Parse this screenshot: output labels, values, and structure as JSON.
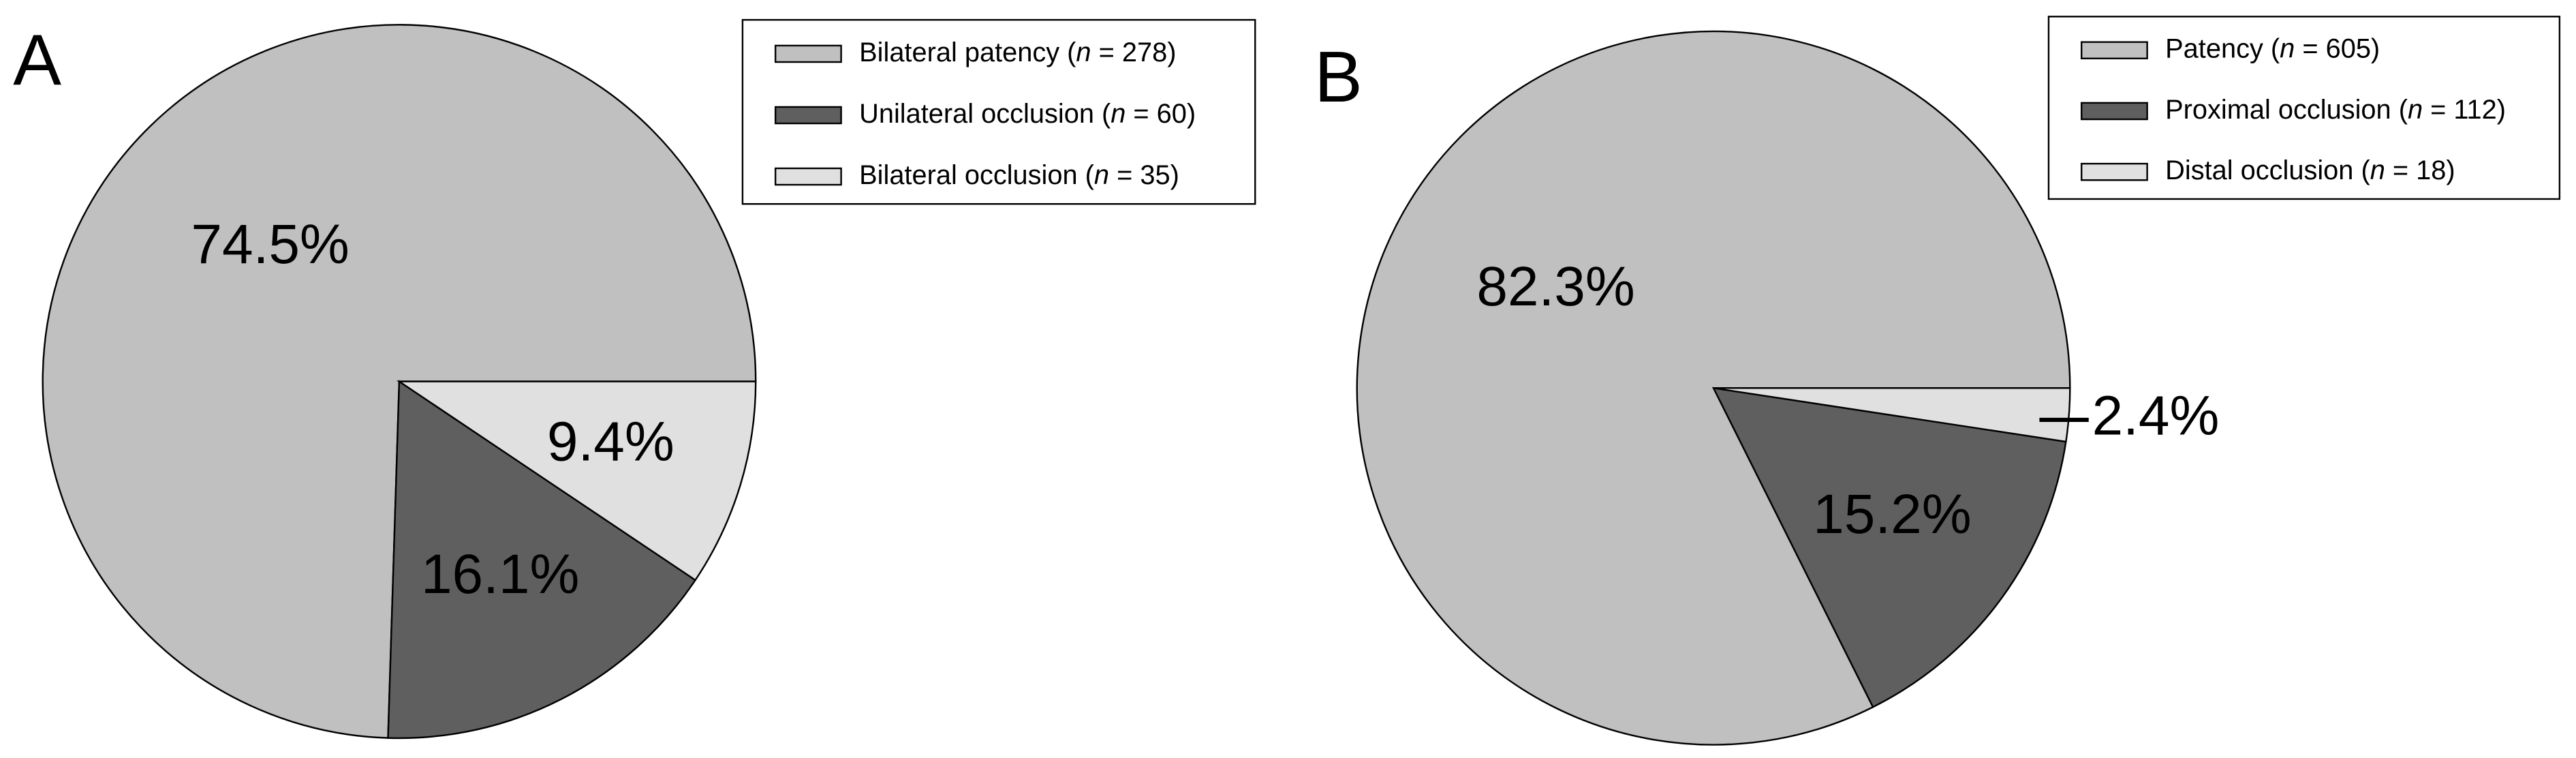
{
  "chart_data": [
    {
      "type": "pie",
      "title": "A",
      "categories": [
        "Bilateral patency (n = 278)",
        "Unilateral occlusion (n = 60)",
        "Bilateral occlusion (n = 35)"
      ],
      "values": [
        74.5,
        16.1,
        9.4
      ],
      "value_labels": [
        "74.5%",
        "16.1%",
        "9.4%"
      ],
      "colors": [
        "#c0c0c0",
        "#5f5f5f",
        "#e0e0e0"
      ]
    },
    {
      "type": "pie",
      "title": "B",
      "categories": [
        "Patency (n = 605)",
        "Proximal occlusion (n = 112)",
        "Distal occlusion (n = 18)"
      ],
      "values": [
        82.3,
        15.2,
        2.4
      ],
      "value_labels": [
        "82.3%",
        "15.2%",
        "2.4%"
      ],
      "colors": [
        "#c0c0c0",
        "#5f5f5f",
        "#e0e0e0"
      ]
    }
  ]
}
